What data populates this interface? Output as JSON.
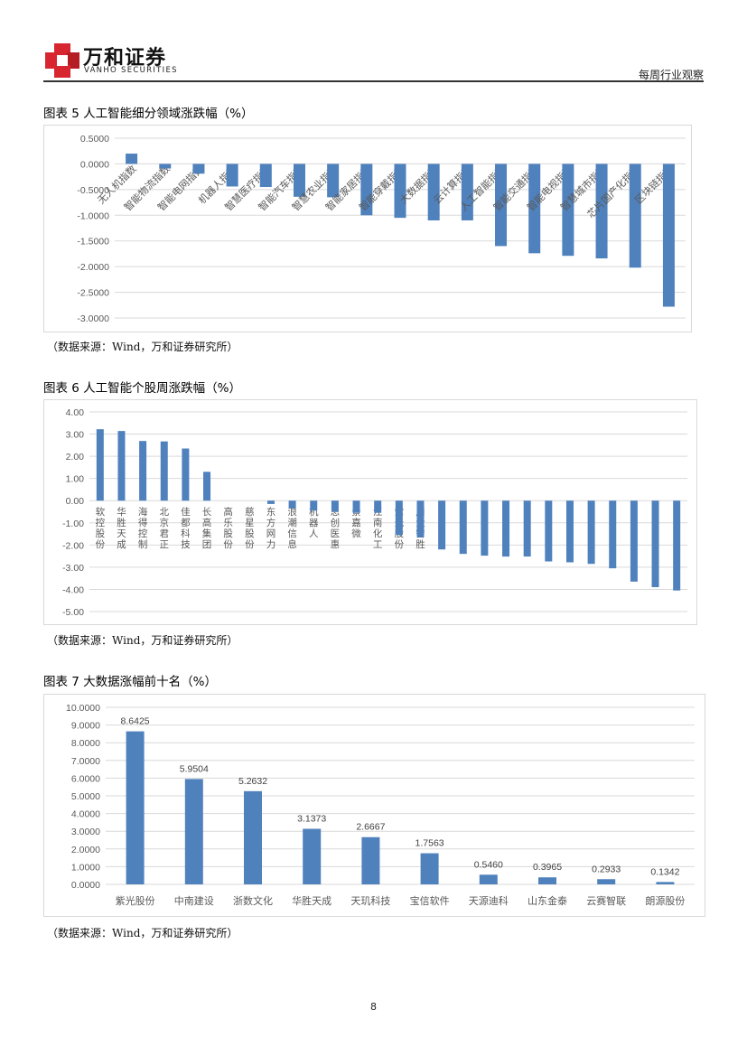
{
  "header": {
    "logo_cn": "万和证券",
    "logo_en": "VANHO SECURITIES",
    "report_type": "每周行业观察",
    "brand_color": "#d7262f"
  },
  "figures": [
    {
      "title": "图表 5 人工智能细分领域涨跌幅（%）",
      "source": "（数据来源：Wind，万和证券研究所）"
    },
    {
      "title": "图表 6 人工智能个股周涨跌幅（%）",
      "source": "（数据来源：Wind，万和证券研究所）"
    },
    {
      "title": "图表 7 大数据涨幅前十名（%）",
      "source": "（数据来源：Wind，万和证券研究所）"
    }
  ],
  "page_number": "8",
  "bar_color": "#4f81bd",
  "chart_data": [
    {
      "type": "bar",
      "title": "人工智能细分领域涨跌幅（%）",
      "xlabel": "",
      "ylabel": "",
      "ylim": [
        -3.0,
        0.5
      ],
      "yticks": [
        "0.5000",
        "0.0000",
        "-0.5000",
        "-1.0000",
        "-1.5000",
        "-2.0000",
        "-2.5000",
        "-3.0000"
      ],
      "grid": true,
      "categories": [
        "无人机指数",
        "智能物流指数",
        "智能电网指数",
        "机器人指数",
        "智慧医疗指数",
        "智能汽车指数",
        "智慧农业指数",
        "智能家居指数",
        "智能穿戴指数",
        "大数据指数",
        "云计算指数",
        "人工智能指数",
        "智能交通指数",
        "智能电视指数",
        "智慧城市指数",
        "芯片国产化指数",
        "区块链指数"
      ],
      "values": [
        0.2,
        -0.09,
        -0.19,
        -0.44,
        -0.45,
        -0.64,
        -0.65,
        -1.0,
        -1.05,
        -1.1,
        -1.1,
        -1.6,
        -1.74,
        -1.79,
        -1.84,
        -2.02,
        -2.78
      ]
    },
    {
      "type": "bar",
      "title": "人工智能个股周涨跌幅（%）",
      "xlabel": "",
      "ylabel": "",
      "ylim": [
        -5.0,
        4.0
      ],
      "yticks": [
        "4.00",
        "3.00",
        "2.00",
        "1.00",
        "0.00",
        "-1.00",
        "-2.00",
        "-3.00",
        "-4.00",
        "-5.00"
      ],
      "grid": true,
      "categories": [
        "软控股份",
        "华胜天成",
        "海得控制",
        "北京君正",
        "佳都科技",
        "长高集团",
        "高乐股份",
        "慈星股份",
        "东方网力",
        "浪潮信息",
        "机器人",
        "思创医惠",
        "景嘉微",
        "江南化工",
        "紫光股份",
        "川大智胜",
        "",
        "",
        "",
        "",
        "",
        "",
        "",
        "",
        "",
        "",
        "",
        ""
      ],
      "values": [
        3.22,
        3.14,
        2.69,
        2.67,
        2.35,
        1.3,
        0.0,
        0.0,
        -0.15,
        -0.35,
        -0.45,
        -0.5,
        -0.55,
        -0.55,
        -1.55,
        -1.65,
        -2.2,
        -2.4,
        -2.48,
        -2.52,
        -2.52,
        -2.74,
        -2.78,
        -2.85,
        -3.05,
        -3.65,
        -3.9,
        -4.05
      ]
    },
    {
      "type": "bar",
      "title": "大数据涨幅前十名（%）",
      "xlabel": "",
      "ylabel": "",
      "ylim": [
        0,
        10
      ],
      "yticks": [
        "10.0000",
        "9.0000",
        "8.0000",
        "7.0000",
        "6.0000",
        "5.0000",
        "4.0000",
        "3.0000",
        "2.0000",
        "1.0000",
        "0.0000"
      ],
      "grid": true,
      "categories": [
        "紫光股份",
        "中南建设",
        "浙数文化",
        "华胜天成",
        "天玑科技",
        "宝信软件",
        "天源迪科",
        "山东金泰",
        "云赛智联",
        "朗源股份"
      ],
      "values": [
        8.6425,
        5.9504,
        5.2632,
        3.1373,
        2.6667,
        1.7563,
        0.546,
        0.3965,
        0.2933,
        0.1342
      ],
      "data_labels": [
        "8.6425",
        "5.9504",
        "5.2632",
        "3.1373",
        "2.6667",
        "1.7563",
        "0.5460",
        "0.3965",
        "0.2933",
        "0.1342"
      ]
    }
  ]
}
